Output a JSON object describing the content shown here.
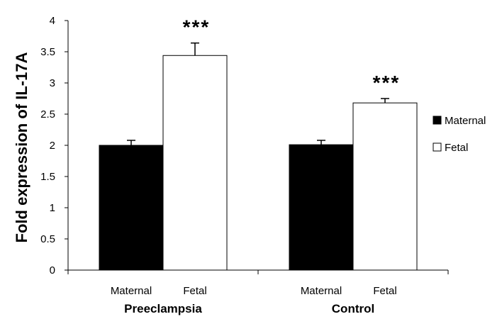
{
  "chart_data": {
    "type": "bar",
    "title": "",
    "xlabel": "",
    "ylabel": "Fold expression of IL-17A",
    "ylim": [
      0,
      4
    ],
    "yticks": [
      "0",
      "0.5",
      "1",
      "1.5",
      "2",
      "2.5",
      "3",
      "3.5",
      "4"
    ],
    "ytick_values": [
      0,
      0.5,
      1,
      1.5,
      2,
      2.5,
      3,
      3.5,
      4
    ],
    "grid": false,
    "legend_position": "right",
    "groups": [
      {
        "name": "Preeclampsia",
        "bars": [
          {
            "category": "Maternal",
            "series": "Maternal",
            "value": 2.0,
            "error": 0.08,
            "significance": ""
          },
          {
            "category": "Fetal",
            "series": "Fetal",
            "value": 3.44,
            "error": 0.2,
            "significance": "***"
          }
        ]
      },
      {
        "name": "Control",
        "bars": [
          {
            "category": "Maternal",
            "series": "Maternal",
            "value": 2.01,
            "error": 0.07,
            "significance": ""
          },
          {
            "category": "Fetal",
            "series": "Fetal",
            "value": 2.68,
            "error": 0.07,
            "significance": "***"
          }
        ]
      }
    ],
    "series": [
      {
        "name": "Maternal",
        "color": "#000000",
        "values": [
          2.0,
          2.01
        ]
      },
      {
        "name": "Fetal",
        "color": "#ffffff",
        "values": [
          3.44,
          2.68
        ]
      }
    ]
  }
}
